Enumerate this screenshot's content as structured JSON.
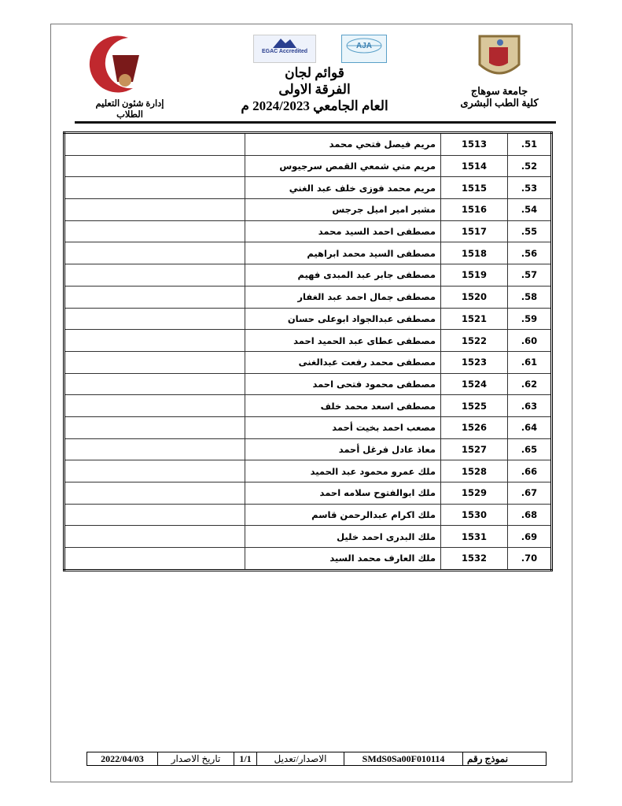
{
  "header": {
    "right_logo_text": "جامعة سوهاج",
    "right_line1": "جامعة سوهاج",
    "right_line2": "كلية الطب البشرى",
    "left_logo_text": [
      "جامعة سوهاج",
      "كلية الطب"
    ],
    "left_line": "إدارة شئون التعليم الطلاب",
    "accreditation_logos": [
      "EGAC Accredited",
      "AJA"
    ],
    "title1": "قوائم لجان",
    "title2": "الفرقة الاولى",
    "title3": "العام الجامعي 2024/2023 م"
  },
  "rows": [
    {
      "idx": "51.",
      "code": "1513",
      "name": "مريم فيصل فتحي محمد"
    },
    {
      "idx": "52.",
      "code": "1514",
      "name": "مريم متي شمعي القمص سرجيوس"
    },
    {
      "idx": "53.",
      "code": "1515",
      "name": "مريم محمد فوزى خلف عبد الغني"
    },
    {
      "idx": "54.",
      "code": "1516",
      "name": "مشير امير اميل جرجس"
    },
    {
      "idx": "55.",
      "code": "1517",
      "name": "مصطفى احمد السيد محمد"
    },
    {
      "idx": "56.",
      "code": "1518",
      "name": "مصطفى السيد محمد ابراهيم"
    },
    {
      "idx": "57.",
      "code": "1519",
      "name": "مصطفى جابر عبد المبدى فهيم"
    },
    {
      "idx": "58.",
      "code": "1520",
      "name": "مصطفى جمال احمد عبد الغفار"
    },
    {
      "idx": "59.",
      "code": "1521",
      "name": "مصطفى عبدالجواد ابوعلى حسان"
    },
    {
      "idx": "60.",
      "code": "1522",
      "name": "مصطفى عطاى عبد الحميد احمد"
    },
    {
      "idx": "61.",
      "code": "1523",
      "name": "مصطفى محمد رفعت عبدالغنى"
    },
    {
      "idx": "62.",
      "code": "1524",
      "name": "مصطفى محمود فتحى احمد"
    },
    {
      "idx": "63.",
      "code": "1525",
      "name": "مصطفى اسعد محمد خلف"
    },
    {
      "idx": "64.",
      "code": "1526",
      "name": "مصعب احمد بخيت أحمد"
    },
    {
      "idx": "65.",
      "code": "1527",
      "name": "معاذ عادل فرغل أحمد"
    },
    {
      "idx": "66.",
      "code": "1528",
      "name": "ملك  عمرو محمود عبد الحميد"
    },
    {
      "idx": "67.",
      "code": "1529",
      "name": "ملك ابوالفتوح سلامه احمد"
    },
    {
      "idx": "68.",
      "code": "1530",
      "name": "ملك اكرام عبدالرحمن قاسم"
    },
    {
      "idx": "69.",
      "code": "1531",
      "name": "ملك البدرى احمد خليل"
    },
    {
      "idx": "70.",
      "code": "1532",
      "name": "ملك العارف محمد السيد"
    }
  ],
  "footer": {
    "form_label": "نموذج رقم",
    "form_number": "SMdS0Sa00F010114",
    "version_label": "الاصدار/تعديل",
    "version": "1/1",
    "date_label": "تاريخ الاصدار",
    "date": "2022/04/03"
  },
  "colors": {
    "logo_red": "#c0282e",
    "logo_gold": "#b89a5a",
    "logo_blue": "#2a3f8f"
  }
}
